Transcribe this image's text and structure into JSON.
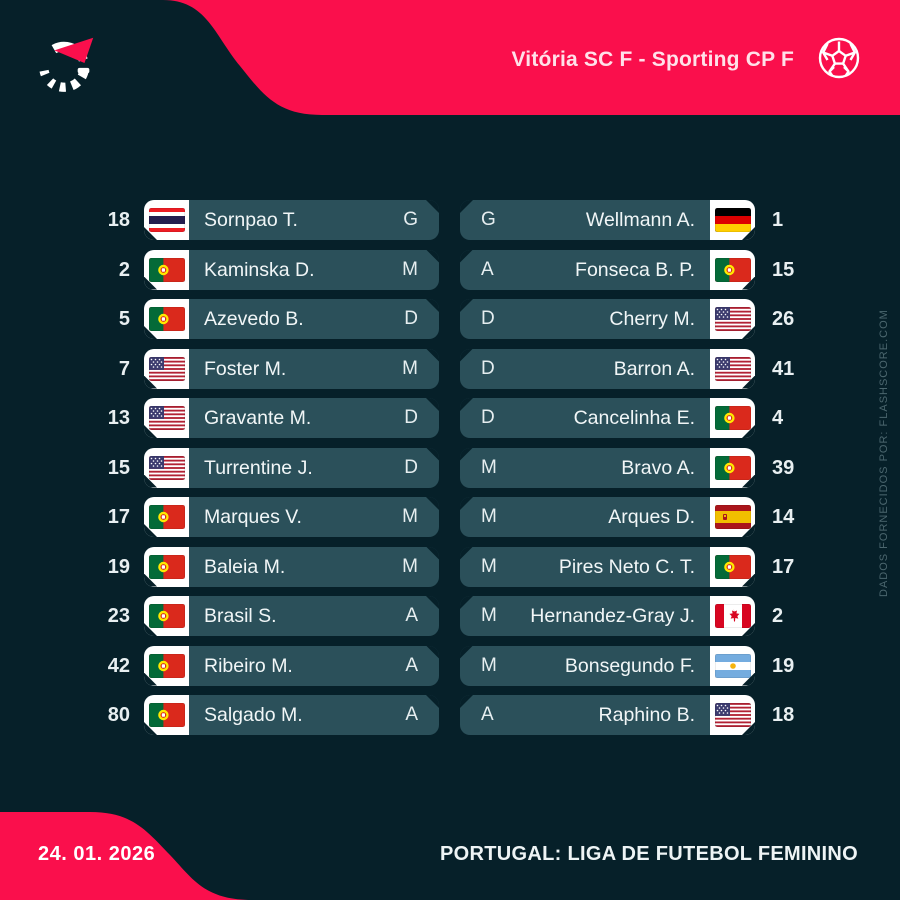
{
  "header": {
    "match_title": "Vitória SC F - Sporting CP F"
  },
  "icons": {
    "logo": "flashscore-logo",
    "ball": "soccer-ball-icon",
    "flags_used": [
      "thailand",
      "portugal",
      "usa",
      "germany",
      "spain",
      "canada",
      "argentina"
    ]
  },
  "colors": {
    "background": "#062029",
    "pill": "#2b505a",
    "accent_pink": "#fa0f4c",
    "flag_box": "#ffffff",
    "watermark_text": "#4b666e"
  },
  "teams": {
    "left": {
      "players": [
        {
          "number": "18",
          "flag": "thailand",
          "name": "Sornpao T.",
          "position": "G"
        },
        {
          "number": "2",
          "flag": "portugal",
          "name": "Kaminska D.",
          "position": "M"
        },
        {
          "number": "5",
          "flag": "portugal",
          "name": "Azevedo B.",
          "position": "D"
        },
        {
          "number": "7",
          "flag": "usa",
          "name": "Foster M.",
          "position": "M"
        },
        {
          "number": "13",
          "flag": "usa",
          "name": "Gravante M.",
          "position": "D"
        },
        {
          "number": "15",
          "flag": "usa",
          "name": "Turrentine J.",
          "position": "D"
        },
        {
          "number": "17",
          "flag": "portugal",
          "name": "Marques V.",
          "position": "M"
        },
        {
          "number": "19",
          "flag": "portugal",
          "name": "Baleia M.",
          "position": "M"
        },
        {
          "number": "23",
          "flag": "portugal",
          "name": "Brasil S.",
          "position": "A"
        },
        {
          "number": "42",
          "flag": "portugal",
          "name": "Ribeiro M.",
          "position": "A"
        },
        {
          "number": "80",
          "flag": "portugal",
          "name": "Salgado M.",
          "position": "A"
        }
      ]
    },
    "right": {
      "players": [
        {
          "number": "1",
          "flag": "germany",
          "name": "Wellmann A.",
          "position": "G"
        },
        {
          "number": "15",
          "flag": "portugal",
          "name": "Fonseca B. P.",
          "position": "A"
        },
        {
          "number": "26",
          "flag": "usa",
          "name": "Cherry M.",
          "position": "D"
        },
        {
          "number": "41",
          "flag": "usa",
          "name": "Barron A.",
          "position": "D"
        },
        {
          "number": "4",
          "flag": "portugal",
          "name": "Cancelinha E.",
          "position": "D"
        },
        {
          "number": "39",
          "flag": "portugal",
          "name": "Bravo A.",
          "position": "M"
        },
        {
          "number": "14",
          "flag": "spain",
          "name": "Arques D.",
          "position": "M"
        },
        {
          "number": "17",
          "flag": "portugal",
          "name": "Pires Neto C. T.",
          "position": "M"
        },
        {
          "number": "2",
          "flag": "canada",
          "name": "Hernandez-Gray J.",
          "position": "M"
        },
        {
          "number": "19",
          "flag": "argentina",
          "name": "Bonsegundo F.",
          "position": "M"
        },
        {
          "number": "18",
          "flag": "usa",
          "name": "Raphino B.",
          "position": "A"
        }
      ]
    }
  },
  "watermark": {
    "text": "DADOS FORNECIDOS POR: FLASHSCORE.COM"
  },
  "footer": {
    "date": "24. 01. 2026",
    "league": "PORTUGAL: LIGA DE FUTEBOL FEMININO"
  }
}
